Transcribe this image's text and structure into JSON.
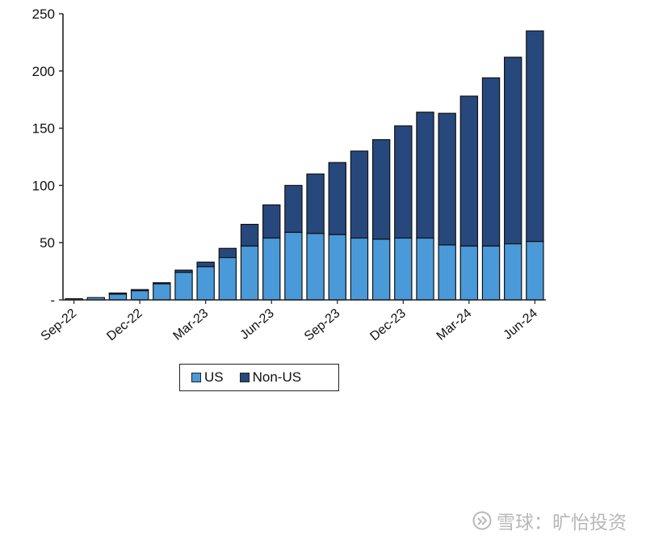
{
  "chart_data": {
    "type": "bar",
    "stacked": true,
    "categories": [
      "Sep-22",
      "Oct-22",
      "Nov-22",
      "Dec-22",
      "Jan-23",
      "Feb-23",
      "Mar-23",
      "Apr-23",
      "May-23",
      "Jun-23",
      "Jul-23",
      "Aug-23",
      "Sep-23",
      "Oct-23",
      "Nov-23",
      "Dec-23",
      "Jan-24",
      "Feb-24",
      "Mar-24",
      "Apr-24",
      "May-24",
      "Jun-24"
    ],
    "x_tick_labels": [
      "Sep-22",
      "Dec-22",
      "Mar-23",
      "Jun-23",
      "Sep-23",
      "Dec-23",
      "Mar-24",
      "Jun-24"
    ],
    "series": [
      {
        "name": "US",
        "color": "#4a9ad9",
        "values": [
          1,
          2,
          5,
          8,
          14,
          24,
          29,
          37,
          47,
          54,
          59,
          58,
          57,
          54,
          53,
          54,
          54,
          48,
          47,
          47,
          49,
          51
        ]
      },
      {
        "name": "Non-US",
        "color": "#27487c",
        "values": [
          0,
          0,
          1,
          1,
          1,
          2,
          4,
          8,
          19,
          29,
          41,
          52,
          63,
          76,
          87,
          98,
          110,
          115,
          131,
          147,
          163,
          184
        ]
      }
    ],
    "y_ticks": [
      "-",
      "50",
      "100",
      "150",
      "200",
      "250"
    ],
    "ylim": [
      0,
      250
    ],
    "legend_position": "bottom"
  },
  "watermark": {
    "text": "雪球：旷怡投资"
  }
}
